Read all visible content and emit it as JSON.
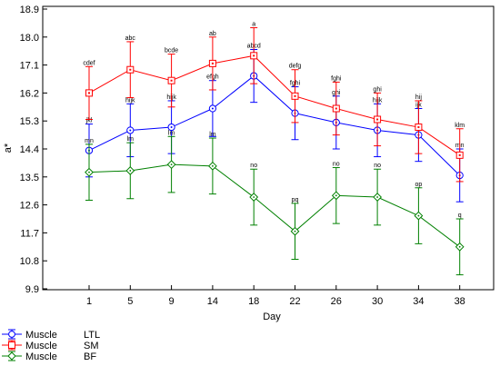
{
  "chart_data": {
    "type": "line",
    "xlabel": "Day",
    "ylabel": "a*",
    "categories": [
      "1",
      "5",
      "9",
      "14",
      "18",
      "22",
      "26",
      "30",
      "34",
      "38"
    ],
    "yticks": [
      "9.9",
      "10.8",
      "11.7",
      "12.6",
      "13.5",
      "14.4",
      "15.3",
      "16.2",
      "17.1",
      "18.0",
      "18.9"
    ],
    "ylim": [
      9.9,
      18.9
    ],
    "grid": false,
    "legend_position": "bottom-left",
    "series": [
      {
        "name": "LTL",
        "legend_factor": "Muscle",
        "color": "#0000ff",
        "marker": "circle",
        "values": [
          14.35,
          15.0,
          15.1,
          15.7,
          16.75,
          15.55,
          15.25,
          15.0,
          14.85,
          13.55
        ],
        "errors": [
          0.85,
          0.85,
          0.85,
          0.9,
          0.85,
          0.85,
          0.85,
          0.85,
          0.85,
          0.85
        ],
        "annotations": [
          "jkl",
          "hijk",
          "hijk",
          "efgh",
          "abcd",
          "fghi",
          "ghi",
          "hijk",
          "ijk",
          "mn"
        ]
      },
      {
        "name": "SM",
        "legend_factor": "Muscle",
        "color": "#ff0000",
        "marker": "square",
        "values": [
          16.2,
          16.95,
          16.6,
          17.15,
          17.4,
          16.1,
          15.7,
          15.35,
          15.1,
          14.2
        ],
        "errors": [
          0.85,
          0.9,
          0.85,
          0.85,
          0.9,
          0.85,
          0.85,
          0.85,
          0.85,
          0.85
        ],
        "annotations": [
          "cdef",
          "abc",
          "bcde",
          "ab",
          "a",
          "defg",
          "fghi",
          "ghi",
          "hij",
          "klm"
        ]
      },
      {
        "name": "BF",
        "legend_factor": "Muscle",
        "color": "#008000",
        "marker": "diamond",
        "values": [
          13.65,
          13.7,
          13.9,
          13.85,
          12.85,
          11.75,
          12.9,
          12.85,
          12.25,
          11.25
        ],
        "errors": [
          0.9,
          0.9,
          0.9,
          0.9,
          0.9,
          0.9,
          0.9,
          0.9,
          0.9,
          0.9
        ],
        "annotations": [
          "mn",
          "lm",
          "lm",
          "lm",
          "no",
          "pq",
          "no",
          "no",
          "op",
          "q"
        ]
      }
    ]
  }
}
